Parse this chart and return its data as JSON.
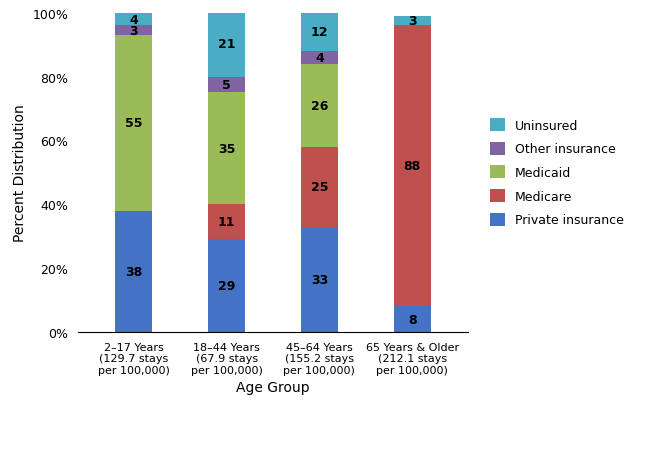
{
  "categories": [
    "2–17 Years\n(129.7 stays\nper 100,000)",
    "18–44 Years\n(67.9 stays\nper 100,000)",
    "45–64 Years\n(155.2 stays\nper 100,000)",
    "65 Years & Older\n(212.1 stays\nper 100,000)"
  ],
  "series": {
    "Private insurance": [
      38,
      29,
      33,
      8
    ],
    "Medicare": [
      0,
      11,
      25,
      88
    ],
    "Medicaid": [
      55,
      35,
      26,
      0
    ],
    "Other insurance": [
      3,
      5,
      4,
      0
    ],
    "Uninsured": [
      4,
      21,
      12,
      3
    ]
  },
  "colors": {
    "Private insurance": "#4472C4",
    "Medicare": "#C0504D",
    "Medicaid": "#9BBB59",
    "Other insurance": "#8064A2",
    "Uninsured": "#4BACC6"
  },
  "ylabel": "Percent Distribution",
  "xlabel": "Age Group",
  "yticks": [
    0,
    20,
    40,
    60,
    80,
    100
  ],
  "yticklabels": [
    "0%",
    "20%",
    "40%",
    "60%",
    "80%",
    "100%"
  ],
  "legend_order": [
    "Uninsured",
    "Other insurance",
    "Medicaid",
    "Medicare",
    "Private insurance"
  ],
  "bar_width": 0.4,
  "figsize": [
    6.5,
    4.56
  ],
  "dpi": 100
}
